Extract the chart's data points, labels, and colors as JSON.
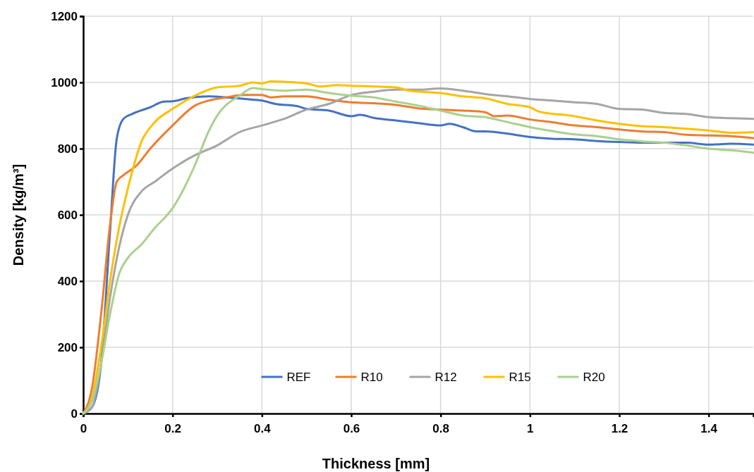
{
  "chart_data": {
    "type": "line",
    "xlabel": "Thickness [mm]",
    "ylabel": "Density [kg/m³]",
    "xlim": [
      0,
      1.5
    ],
    "xticks": [
      0,
      0.2,
      0.4,
      0.6,
      0.8,
      1,
      1.2,
      1.4
    ],
    "ylim": [
      0,
      1200
    ],
    "yticks": [
      0,
      200,
      400,
      600,
      800,
      1000,
      1200
    ],
    "grid": true,
    "legend": "bottom",
    "marker": "none",
    "line_style": "solid",
    "series": [
      {
        "name": "REF",
        "color": "#4472c4",
        "x": [
          0,
          0.02,
          0.04,
          0.06,
          0.075,
          0.09,
          0.11,
          0.15,
          0.18,
          0.2,
          0.23,
          0.28,
          0.32,
          0.38,
          0.4,
          0.43,
          0.48,
          0.5,
          0.55,
          0.6,
          0.62,
          0.65,
          0.7,
          0.75,
          0.8,
          0.82,
          0.85,
          0.88,
          0.9,
          0.95,
          1,
          1.05,
          1.1,
          1.15,
          1.2,
          1.25,
          1.3,
          1.35,
          1.4,
          1.45,
          1.5
        ],
        "values": [
          0,
          20,
          150,
          550,
          830,
          890,
          905,
          925,
          942,
          943,
          952,
          958,
          955,
          948,
          945,
          935,
          928,
          920,
          915,
          898,
          902,
          893,
          885,
          877,
          870,
          875,
          865,
          852,
          852,
          845,
          835,
          830,
          828,
          823,
          820,
          818,
          818,
          818,
          812,
          815,
          812
        ]
      },
      {
        "name": "R10",
        "color": "#ed7d31",
        "x": [
          0,
          0.02,
          0.04,
          0.06,
          0.075,
          0.09,
          0.12,
          0.15,
          0.2,
          0.25,
          0.28,
          0.32,
          0.36,
          0.4,
          0.42,
          0.45,
          0.5,
          0.55,
          0.6,
          0.65,
          0.7,
          0.75,
          0.8,
          0.85,
          0.9,
          0.92,
          0.95,
          1,
          1.05,
          1.1,
          1.15,
          1.2,
          1.25,
          1.3,
          1.35,
          1.4,
          1.45,
          1.5
        ],
        "values": [
          0,
          80,
          300,
          570,
          700,
          720,
          750,
          800,
          870,
          930,
          945,
          955,
          962,
          962,
          955,
          958,
          958,
          948,
          940,
          937,
          932,
          922,
          918,
          915,
          910,
          898,
          900,
          888,
          880,
          870,
          865,
          858,
          852,
          850,
          842,
          840,
          838,
          832
        ]
      },
      {
        "name": "R12",
        "color": "#a5a5a5",
        "x": [
          0,
          0.02,
          0.04,
          0.06,
          0.08,
          0.1,
          0.13,
          0.16,
          0.2,
          0.25,
          0.3,
          0.35,
          0.4,
          0.45,
          0.5,
          0.55,
          0.6,
          0.65,
          0.7,
          0.75,
          0.8,
          0.85,
          0.9,
          0.95,
          1,
          1.05,
          1.1,
          1.15,
          1.2,
          1.25,
          1.3,
          1.35,
          1.4,
          1.45,
          1.5
        ],
        "values": [
          0,
          20,
          150,
          350,
          500,
          600,
          670,
          700,
          740,
          780,
          810,
          850,
          870,
          890,
          918,
          935,
          962,
          972,
          978,
          978,
          982,
          975,
          965,
          958,
          950,
          945,
          940,
          935,
          920,
          918,
          908,
          905,
          895,
          892,
          890
        ]
      },
      {
        "name": "R15",
        "color": "#ffc000",
        "x": [
          0,
          0.02,
          0.04,
          0.06,
          0.08,
          0.1,
          0.13,
          0.16,
          0.2,
          0.25,
          0.3,
          0.35,
          0.38,
          0.4,
          0.42,
          0.45,
          0.5,
          0.53,
          0.57,
          0.6,
          0.65,
          0.7,
          0.73,
          0.8,
          0.85,
          0.9,
          0.95,
          1,
          1.02,
          1.1,
          1.15,
          1.2,
          1.25,
          1.3,
          1.35,
          1.4,
          1.45,
          1.5
        ],
        "values": [
          0,
          50,
          200,
          400,
          560,
          680,
          820,
          880,
          920,
          960,
          985,
          990,
          1000,
          997,
          1003,
          1002,
          997,
          988,
          992,
          990,
          988,
          985,
          975,
          968,
          958,
          952,
          935,
          925,
          912,
          898,
          885,
          875,
          868,
          865,
          860,
          855,
          848,
          850
        ]
      },
      {
        "name": "R20",
        "color": "#a9d18e",
        "x": [
          0,
          0.02,
          0.04,
          0.06,
          0.08,
          0.1,
          0.13,
          0.16,
          0.2,
          0.25,
          0.28,
          0.3,
          0.35,
          0.38,
          0.4,
          0.45,
          0.5,
          0.55,
          0.6,
          0.65,
          0.7,
          0.75,
          0.8,
          0.85,
          0.9,
          0.95,
          1,
          1.05,
          1.1,
          1.15,
          1.2,
          1.25,
          1.3,
          1.35,
          1.4,
          1.45,
          1.5
        ],
        "values": [
          0,
          40,
          150,
          300,
          420,
          470,
          510,
          560,
          620,
          750,
          850,
          900,
          960,
          983,
          980,
          975,
          978,
          968,
          960,
          955,
          942,
          930,
          915,
          900,
          895,
          880,
          865,
          853,
          843,
          838,
          828,
          822,
          818,
          810,
          800,
          795,
          788
        ]
      }
    ]
  }
}
